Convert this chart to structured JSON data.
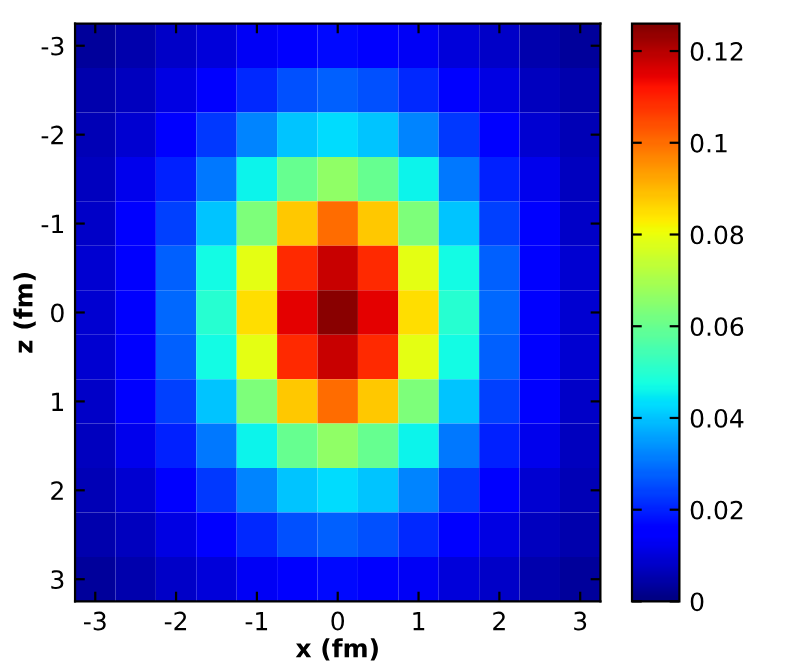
{
  "chart_data": {
    "type": "heatmap",
    "xlabel": "x (fm)",
    "ylabel": "z (fm)",
    "categories": [
      "-3",
      null,
      "-2",
      null,
      "-1",
      null,
      "0",
      null,
      "1",
      null,
      "2",
      null,
      "3"
    ],
    "y_categories": [
      "-3",
      null,
      "-2",
      null,
      "-1",
      null,
      "0",
      null,
      "1",
      null,
      "2",
      null,
      "3"
    ],
    "clim": [
      0,
      0.126
    ],
    "cticks": [
      0,
      0.02,
      0.04,
      0.06,
      0.08,
      0.1,
      0.12
    ],
    "grid": false,
    "cells": [
      [
        0.003,
        0.005,
        0.008,
        0.01,
        0.013,
        0.016,
        0.017,
        0.016,
        0.013,
        0.01,
        0.008,
        0.005,
        0.003
      ],
      [
        0.005,
        0.007,
        0.011,
        0.015,
        0.021,
        0.026,
        0.028,
        0.026,
        0.021,
        0.015,
        0.011,
        0.007,
        0.005
      ],
      [
        0.006,
        0.009,
        0.015,
        0.023,
        0.032,
        0.04,
        0.043,
        0.04,
        0.032,
        0.023,
        0.015,
        0.009,
        0.006
      ],
      [
        0.007,
        0.012,
        0.02,
        0.031,
        0.046,
        0.06,
        0.066,
        0.06,
        0.046,
        0.031,
        0.02,
        0.012,
        0.007
      ],
      [
        0.008,
        0.014,
        0.024,
        0.04,
        0.063,
        0.088,
        0.1,
        0.088,
        0.063,
        0.04,
        0.024,
        0.014,
        0.008
      ],
      [
        0.009,
        0.016,
        0.028,
        0.047,
        0.079,
        0.109,
        0.118,
        0.109,
        0.079,
        0.047,
        0.028,
        0.016,
        0.009
      ],
      [
        0.009,
        0.016,
        0.029,
        0.05,
        0.085,
        0.115,
        0.125,
        0.115,
        0.085,
        0.05,
        0.029,
        0.016,
        0.009
      ],
      [
        0.009,
        0.016,
        0.028,
        0.047,
        0.079,
        0.109,
        0.118,
        0.109,
        0.079,
        0.047,
        0.028,
        0.016,
        0.009
      ],
      [
        0.008,
        0.014,
        0.024,
        0.04,
        0.063,
        0.088,
        0.1,
        0.088,
        0.063,
        0.04,
        0.024,
        0.014,
        0.008
      ],
      [
        0.007,
        0.012,
        0.02,
        0.031,
        0.046,
        0.06,
        0.066,
        0.06,
        0.046,
        0.031,
        0.02,
        0.012,
        0.007
      ],
      [
        0.006,
        0.009,
        0.015,
        0.023,
        0.032,
        0.04,
        0.043,
        0.04,
        0.032,
        0.023,
        0.015,
        0.009,
        0.006
      ],
      [
        0.005,
        0.007,
        0.011,
        0.015,
        0.021,
        0.026,
        0.028,
        0.026,
        0.021,
        0.015,
        0.011,
        0.007,
        0.005
      ],
      [
        0.003,
        0.005,
        0.008,
        0.01,
        0.013,
        0.016,
        0.017,
        0.016,
        0.013,
        0.01,
        0.008,
        0.005,
        0.003
      ]
    ]
  }
}
